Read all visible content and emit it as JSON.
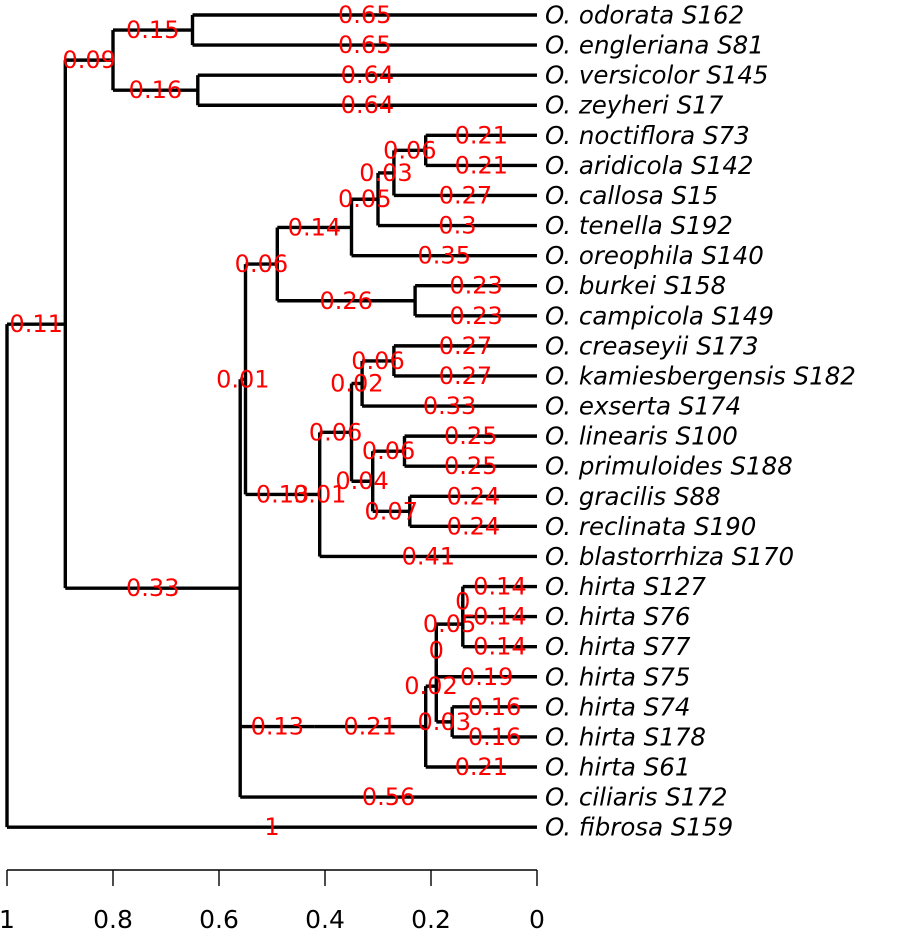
{
  "colors": {
    "branch": "#000000",
    "edge_label": "#ff0000",
    "background": "#ffffff"
  },
  "axis": {
    "domain": [
      1,
      0
    ],
    "ticks": [
      1,
      0.8,
      0.6,
      0.4,
      0.2,
      0
    ],
    "tick_labels": [
      "1",
      "0.8",
      "0.6",
      "0.4",
      "0.2",
      "0"
    ]
  },
  "tips": [
    "O. odorata S162",
    "O. engleriana S81",
    "O. versicolor S145",
    "O. zeyheri S17",
    "O. noctiflora S73",
    "O. aridicola S142",
    "O. callosa S15",
    "O. tenella S192",
    "O. oreophila S140",
    "O. burkei S158",
    "O. campicola S149",
    "O. creaseyii S173",
    "O. kamiesbergensis S182",
    "O. exserta S174",
    "O. linearis S100",
    "O. primuloides S188",
    "O. gracilis S88",
    "O. reclinata S190",
    "O. blastorrhiza S170",
    "O. hirta S127",
    "O. hirta S76",
    "O. hirta S77",
    "O. hirta S75",
    "O. hirta S74",
    "O. hirta S178",
    "O. hirta S61",
    "O. ciliaris S172",
    "O. fibrosa S159"
  ],
  "tree": {
    "h": 1,
    "children": [
      {
        "h": 0.89,
        "lab": "0.11",
        "children": [
          {
            "h": 0.8,
            "lab": "0.09",
            "children": [
              {
                "h": 0.65,
                "lab": "0.15",
                "children": [
                  {
                    "tip": 0,
                    "lab": "0.65"
                  },
                  {
                    "tip": 1,
                    "lab": "0.65"
                  }
                ]
              },
              {
                "h": 0.64,
                "lab": "0.16",
                "children": [
                  {
                    "tip": 2,
                    "lab": "0.64"
                  },
                  {
                    "tip": 3,
                    "lab": "0.64"
                  }
                ]
              }
            ]
          },
          {
            "h": 0.56,
            "lab": "0.33",
            "children": [
              {
                "h": 0.55,
                "lab": "0.01",
                "children": [
                  {
                    "h": 0.49,
                    "lab": "0.06",
                    "children": [
                      {
                        "h": 0.35,
                        "lab": "0.14",
                        "children": [
                          {
                            "h": 0.3,
                            "lab": "0.05",
                            "children": [
                              {
                                "h": 0.27,
                                "lab": "0.03",
                                "children": [
                                  {
                                    "h": 0.21,
                                    "lab": "0.06",
                                    "children": [
                                      {
                                        "tip": 4,
                                        "lab": "0.21"
                                      },
                                      {
                                        "tip": 5,
                                        "lab": "0.21"
                                      }
                                    ]
                                  },
                                  {
                                    "tip": 6,
                                    "lab": "0.27"
                                  }
                                ]
                              },
                              {
                                "tip": 7,
                                "lab": "0.3"
                              }
                            ]
                          },
                          {
                            "tip": 8,
                            "lab": "0.35"
                          }
                        ]
                      },
                      {
                        "h": 0.23,
                        "lab": "0.26",
                        "children": [
                          {
                            "tip": 9,
                            "lab": "0.23"
                          },
                          {
                            "tip": 10,
                            "lab": "0.23"
                          }
                        ]
                      }
                    ]
                  },
                  {
                    "h": 0.41,
                    "lab": "0.13",
                    "children": [
                      {
                        "h": 0.41,
                        "lab": "0.01",
                        "children": [
                          {
                            "h": 0.35,
                            "lab": "0.06",
                            "children": [
                              {
                                "h": 0.33,
                                "lab": "0.02",
                                "children": [
                                  {
                                    "h": 0.27,
                                    "lab": "0.06",
                                    "children": [
                                      {
                                        "tip": 11,
                                        "lab": "0.27"
                                      },
                                      {
                                        "tip": 12,
                                        "lab": "0.27"
                                      }
                                    ]
                                  },
                                  {
                                    "tip": 13,
                                    "lab": "0.33"
                                  }
                                ]
                              },
                              {
                                "h": 0.31,
                                "lab": "0.04",
                                "children": [
                                  {
                                    "h": 0.25,
                                    "lab": "0.06",
                                    "children": [
                                      {
                                        "tip": 14,
                                        "lab": "0.25"
                                      },
                                      {
                                        "tip": 15,
                                        "lab": "0.25"
                                      }
                                    ]
                                  },
                                  {
                                    "h": 0.24,
                                    "lab": "0.07",
                                    "children": [
                                      {
                                        "tip": 16,
                                        "lab": "0.24"
                                      },
                                      {
                                        "tip": 17,
                                        "lab": "0.24"
                                      }
                                    ]
                                  }
                                ]
                              }
                            ]
                          },
                          {
                            "tip": 18,
                            "lab": "0.41"
                          }
                        ]
                      }
                    ]
                  }
                ]
              },
              {
                "h": 0.42,
                "lab": "0.13",
                "children": [
                  {
                    "h": 0.21,
                    "lab": "0.21",
                    "children": [
                      {
                        "h": 0.19,
                        "lab": "0.02",
                        "children": [
                          {
                            "h": 0.19,
                            "lab": "0",
                            "children": [
                              {
                                "h": 0.14,
                                "lab": "0.05",
                                "children": [
                                  {
                                    "h": 0.14,
                                    "lab": "0",
                                    "children": [
                                      {
                                        "tip": 19,
                                        "lab": "0.14"
                                      },
                                      {
                                        "tip": 20,
                                        "lab": "0.14"
                                      }
                                    ]
                                  },
                                  {
                                    "tip": 21,
                                    "lab": "0.14"
                                  }
                                ]
                              },
                              {
                                "tip": 22,
                                "lab": "0.19"
                              }
                            ]
                          },
                          {
                            "h": 0.16,
                            "lab": "0.03",
                            "children": [
                              {
                                "tip": 23,
                                "lab": "0.16"
                              },
                              {
                                "tip": 24,
                                "lab": "0.16"
                              }
                            ]
                          }
                        ]
                      },
                      {
                        "tip": 25,
                        "lab": "0.21"
                      }
                    ]
                  }
                ]
              },
              {
                "tip": 26,
                "lab": "0.56"
              }
            ]
          }
        ]
      },
      {
        "tip": 27,
        "lab": "1"
      }
    ]
  }
}
